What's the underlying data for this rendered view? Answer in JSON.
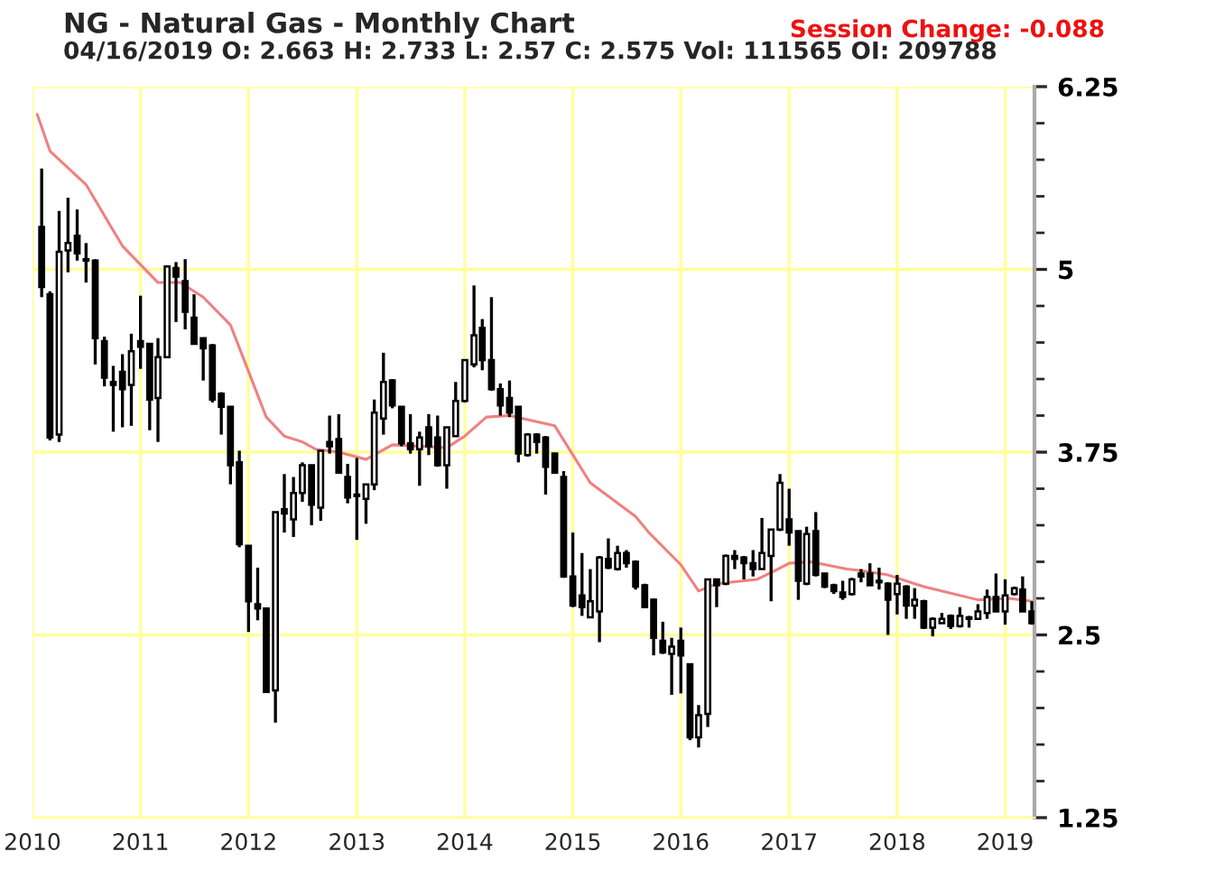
{
  "chart_data": {
    "type": "candlestick",
    "title": "NG - Natural Gas - Monthly Chart",
    "subtitle": "04/16/2019 O: 2.663 H: 2.733 L: 2.57 C: 2.575 Vol: 111565 OI: 209788",
    "annotations": [
      "Session Change: -0.088"
    ],
    "x": [
      "2010-02",
      "2010-03",
      "2010-04",
      "2010-05",
      "2010-06",
      "2010-07",
      "2010-08",
      "2010-09",
      "2010-10",
      "2010-11",
      "2010-12",
      "2011-01",
      "2011-02",
      "2011-03",
      "2011-04",
      "2011-05",
      "2011-06",
      "2011-07",
      "2011-08",
      "2011-09",
      "2011-10",
      "2011-11",
      "2011-12",
      "2012-01",
      "2012-02",
      "2012-03",
      "2012-04",
      "2012-05",
      "2012-06",
      "2012-07",
      "2012-08",
      "2012-09",
      "2012-10",
      "2012-11",
      "2012-12",
      "2013-01",
      "2013-02",
      "2013-03",
      "2013-04",
      "2013-05",
      "2013-06",
      "2013-07",
      "2013-08",
      "2013-09",
      "2013-10",
      "2013-11",
      "2013-12",
      "2014-01",
      "2014-02",
      "2014-03",
      "2014-04",
      "2014-05",
      "2014-06",
      "2014-07",
      "2014-08",
      "2014-09",
      "2014-10",
      "2014-11",
      "2014-12",
      "2015-01",
      "2015-02",
      "2015-03",
      "2015-04",
      "2015-05",
      "2015-06",
      "2015-07",
      "2015-08",
      "2015-09",
      "2015-10",
      "2015-11",
      "2015-12",
      "2016-01",
      "2016-02",
      "2016-03",
      "2016-04",
      "2016-05",
      "2016-06",
      "2016-07",
      "2016-08",
      "2016-09",
      "2016-10",
      "2016-11",
      "2016-12",
      "2017-01",
      "2017-02",
      "2017-03",
      "2017-04",
      "2017-05",
      "2017-06",
      "2017-07",
      "2017-08",
      "2017-09",
      "2017-10",
      "2017-11",
      "2017-12",
      "2018-01",
      "2018-02",
      "2018-03",
      "2018-04",
      "2018-05",
      "2018-06",
      "2018-07",
      "2018-08",
      "2018-09",
      "2018-10",
      "2018-11",
      "2018-12",
      "2019-01",
      "2019-02",
      "2019-03",
      "2019-04"
    ],
    "ohlc": [
      [
        5.29,
        5.69,
        4.81,
        4.88
      ],
      [
        4.83,
        4.85,
        3.83,
        3.85
      ],
      [
        3.87,
        5.4,
        3.82,
        5.12
      ],
      [
        5.13,
        5.49,
        4.98,
        5.18
      ],
      [
        5.23,
        5.41,
        5.06,
        5.11
      ],
      [
        5.07,
        5.18,
        4.91,
        5.06
      ],
      [
        5.06,
        5.07,
        4.35,
        4.53
      ],
      [
        4.51,
        4.54,
        4.2,
        4.26
      ],
      [
        4.23,
        4.34,
        3.89,
        4.21
      ],
      [
        4.3,
        4.42,
        3.92,
        4.18
      ],
      [
        4.21,
        4.56,
        3.93,
        4.44
      ],
      [
        4.51,
        4.82,
        4.32,
        4.47
      ],
      [
        4.49,
        4.49,
        3.9,
        4.11
      ],
      [
        4.12,
        4.53,
        3.82,
        4.4
      ],
      [
        4.4,
        5.02,
        4.4,
        5.02
      ],
      [
        5.01,
        5.05,
        4.64,
        4.95
      ],
      [
        4.92,
        5.07,
        4.59,
        4.71
      ],
      [
        4.67,
        4.83,
        4.49,
        4.49
      ],
      [
        4.53,
        4.53,
        4.24,
        4.46
      ],
      [
        4.48,
        4.49,
        4.09,
        4.11
      ],
      [
        4.15,
        4.16,
        3.87,
        4.06
      ],
      [
        4.06,
        4.06,
        3.53,
        3.66
      ],
      [
        3.68,
        3.76,
        3.1,
        3.12
      ],
      [
        3.11,
        3.11,
        2.52,
        2.73
      ],
      [
        2.71,
        2.96,
        2.6,
        2.68
      ],
      [
        2.68,
        2.68,
        2.11,
        2.11
      ],
      [
        2.12,
        3.34,
        1.9,
        3.34
      ],
      [
        3.36,
        3.6,
        3.2,
        3.33
      ],
      [
        3.29,
        3.58,
        3.17,
        3.47
      ],
      [
        3.47,
        3.68,
        3.41,
        3.66
      ],
      [
        3.66,
        3.66,
        3.25,
        3.39
      ],
      [
        3.37,
        3.76,
        3.28,
        3.76
      ],
      [
        3.82,
        4.0,
        3.74,
        3.79
      ],
      [
        3.84,
        4.01,
        3.61,
        3.61
      ],
      [
        3.58,
        3.67,
        3.4,
        3.44
      ],
      [
        3.46,
        3.71,
        3.15,
        3.45
      ],
      [
        3.43,
        3.53,
        3.26,
        3.53
      ],
      [
        3.53,
        4.11,
        3.49,
        4.02
      ],
      [
        3.98,
        4.43,
        3.87,
        4.23
      ],
      [
        4.24,
        4.25,
        4.05,
        4.07
      ],
      [
        4.06,
        4.06,
        3.79,
        3.81
      ],
      [
        3.81,
        4.01,
        3.74,
        3.77
      ],
      [
        3.77,
        3.89,
        3.52,
        3.85
      ],
      [
        3.92,
        4.01,
        3.73,
        3.79
      ],
      [
        3.85,
        4.0,
        3.65,
        3.66
      ],
      [
        3.66,
        3.92,
        3.5,
        3.92
      ],
      [
        3.86,
        4.23,
        3.86,
        4.1
      ],
      [
        4.1,
        4.38,
        4.09,
        4.38
      ],
      [
        4.35,
        4.89,
        4.33,
        4.55
      ],
      [
        4.6,
        4.66,
        4.31,
        4.38
      ],
      [
        4.38,
        4.81,
        4.17,
        4.18
      ],
      [
        4.18,
        4.22,
        4.0,
        4.07
      ],
      [
        4.12,
        4.24,
        3.99,
        4.02
      ],
      [
        4.06,
        4.06,
        3.68,
        3.74
      ],
      [
        3.73,
        3.88,
        3.72,
        3.87
      ],
      [
        3.87,
        3.88,
        3.74,
        3.82
      ],
      [
        3.85,
        3.86,
        3.46,
        3.65
      ],
      [
        3.74,
        3.74,
        3.61,
        3.61
      ],
      [
        3.58,
        3.62,
        2.89,
        2.9
      ],
      [
        2.9,
        3.2,
        2.69,
        2.7
      ],
      [
        2.77,
        3.06,
        2.63,
        2.69
      ],
      [
        2.62,
        2.95,
        2.62,
        2.73
      ],
      [
        2.66,
        3.04,
        2.45,
        3.03
      ],
      [
        3.02,
        3.16,
        2.95,
        2.96
      ],
      [
        2.95,
        3.11,
        2.94,
        3.06
      ],
      [
        3.06,
        3.08,
        2.96,
        2.99
      ],
      [
        3.0,
        3.01,
        2.81,
        2.83
      ],
      [
        2.84,
        2.85,
        2.69,
        2.69
      ],
      [
        2.74,
        2.75,
        2.36,
        2.48
      ],
      [
        2.46,
        2.59,
        2.37,
        2.38
      ],
      [
        2.37,
        2.48,
        2.09,
        2.42
      ],
      [
        2.46,
        2.55,
        2.1,
        2.36
      ],
      [
        2.3,
        2.3,
        1.78,
        1.8
      ],
      [
        1.8,
        2.02,
        1.73,
        1.95
      ],
      [
        1.96,
        2.88,
        1.87,
        2.88
      ],
      [
        2.88,
        2.88,
        2.69,
        2.84
      ],
      [
        2.85,
        3.05,
        2.84,
        3.04
      ],
      [
        3.04,
        3.08,
        2.95,
        3.02
      ],
      [
        3.03,
        3.04,
        2.88,
        2.99
      ],
      [
        2.99,
        3.08,
        2.9,
        2.95
      ],
      [
        2.95,
        3.3,
        2.95,
        3.06
      ],
      [
        3.04,
        3.22,
        2.73,
        3.22
      ],
      [
        3.22,
        3.6,
        3.21,
        3.54
      ],
      [
        3.29,
        3.5,
        3.11,
        3.2
      ],
      [
        3.21,
        3.21,
        2.74,
        2.87
      ],
      [
        2.85,
        3.24,
        2.84,
        3.19
      ],
      [
        3.21,
        3.34,
        2.9,
        2.91
      ],
      [
        2.92,
        2.92,
        2.82,
        2.83
      ],
      [
        2.84,
        2.85,
        2.78,
        2.8
      ],
      [
        2.79,
        2.87,
        2.74,
        2.76
      ],
      [
        2.78,
        2.89,
        2.77,
        2.88
      ],
      [
        2.92,
        2.95,
        2.86,
        2.9
      ],
      [
        2.92,
        2.99,
        2.84,
        2.84
      ],
      [
        2.87,
        2.96,
        2.81,
        2.86
      ],
      [
        2.85,
        2.86,
        2.5,
        2.74
      ],
      [
        2.78,
        2.91,
        2.64,
        2.85
      ],
      [
        2.83,
        2.84,
        2.61,
        2.7
      ],
      [
        2.7,
        2.82,
        2.61,
        2.74
      ],
      [
        2.73,
        2.74,
        2.54,
        2.55
      ],
      [
        2.55,
        2.62,
        2.49,
        2.61
      ],
      [
        2.58,
        2.65,
        2.58,
        2.61
      ],
      [
        2.63,
        2.64,
        2.54,
        2.56
      ],
      [
        2.56,
        2.69,
        2.55,
        2.63
      ],
      [
        2.61,
        2.63,
        2.55,
        2.62
      ],
      [
        2.61,
        2.71,
        2.61,
        2.66
      ],
      [
        2.65,
        2.81,
        2.61,
        2.76
      ],
      [
        2.76,
        2.92,
        2.66,
        2.66
      ],
      [
        2.66,
        2.88,
        2.57,
        2.77
      ],
      [
        2.78,
        2.83,
        2.77,
        2.82
      ],
      [
        2.81,
        2.9,
        2.66,
        2.66
      ],
      [
        2.66,
        2.73,
        2.57,
        2.58
      ]
    ],
    "series": [
      {
        "type": "line",
        "color": "#f08080",
        "x": [
          "2010-01-17",
          "2010-03",
          "2010-07",
          "2010-11",
          "2011-03",
          "2011-05-15",
          "2011-08",
          "2011-11",
          "2012-03",
          "2012-05",
          "2012-07",
          "2012-08-15",
          "2012-11",
          "2013-02",
          "2013-05",
          "2013-11",
          "2014-01",
          "2014-03-15",
          "2014-06",
          "2014-11",
          "2015-03",
          "2015-08",
          "2015-09-15",
          "2016-01",
          "2016-03",
          "2016-05",
          "2016-09-15",
          "2016-11-15",
          "2017-01",
          "2017-03-15",
          "2017-07-15",
          "2017-09",
          "2017-12",
          "2018-04",
          "2018-10",
          "2019-01-15",
          "2019-04"
        ],
        "values": [
          6.06,
          5.81,
          5.58,
          5.16,
          4.91,
          4.91,
          4.81,
          4.62,
          3.99,
          3.86,
          3.82,
          3.77,
          3.75,
          3.7,
          3.8,
          3.78,
          3.86,
          3.99,
          4.0,
          3.93,
          3.54,
          3.31,
          3.2,
          2.98,
          2.8,
          2.85,
          2.88,
          2.94,
          2.99,
          3.0,
          2.95,
          2.94,
          2.91,
          2.83,
          2.74,
          2.75,
          2.73
        ]
      }
    ],
    "xlim": [
      "2010-01",
      "2019-04-10"
    ],
    "xticks": [
      {
        "value": "2010-01",
        "label": "2010"
      },
      {
        "value": "2011-01",
        "label": "2011"
      },
      {
        "value": "2012-01",
        "label": "2012"
      },
      {
        "value": "2013-01",
        "label": "2013"
      },
      {
        "value": "2014-01",
        "label": "2014"
      },
      {
        "value": "2015-01",
        "label": "2015"
      },
      {
        "value": "2016-01",
        "label": "2016"
      },
      {
        "value": "2017-01",
        "label": "2017"
      },
      {
        "value": "2018-01",
        "label": "2018"
      },
      {
        "value": "2019-01",
        "label": "2019"
      }
    ],
    "ylim": [
      1.25,
      6.25
    ],
    "yticks": [
      1.25,
      {
        "value": 1.5,
        "label": null
      },
      {
        "value": 1.75,
        "label": null
      },
      {
        "value": 2,
        "label": null
      },
      {
        "value": 2.25,
        "label": null
      },
      2.5,
      {
        "value": 2.75,
        "label": null
      },
      {
        "value": 3,
        "label": null
      },
      {
        "value": 3.25,
        "label": null
      },
      {
        "value": 3.5,
        "label": null
      },
      3.75,
      {
        "value": 4,
        "label": null
      },
      {
        "value": 4.25,
        "label": null
      },
      {
        "value": 4.5,
        "label": null
      },
      {
        "value": 4.75,
        "label": null
      },
      5,
      {
        "value": 5.25,
        "label": null
      },
      {
        "value": 5.5,
        "label": null
      },
      {
        "value": 5.75,
        "label": null
      },
      {
        "value": 6,
        "label": null
      },
      6.25
    ],
    "grid": true,
    "legend": false
  }
}
